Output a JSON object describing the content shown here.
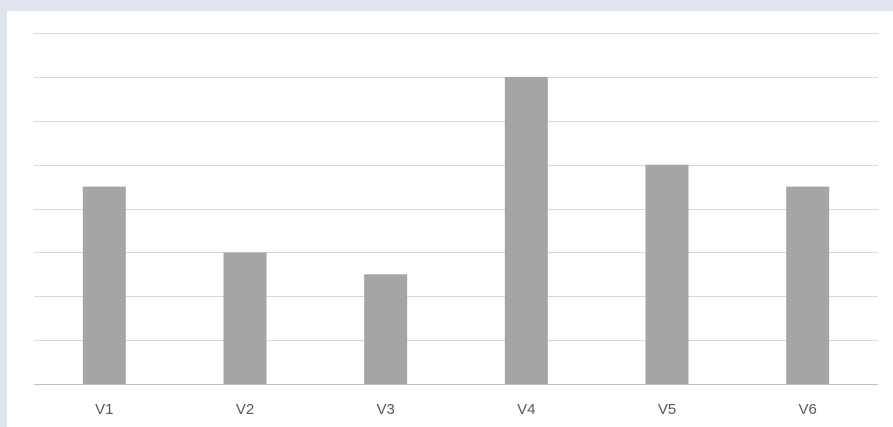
{
  "chart_data": {
    "type": "bar",
    "categories": [
      "V1",
      "V2",
      "V3",
      "V4",
      "V5",
      "V6"
    ],
    "values": [
      4.5,
      3,
      2.5,
      7,
      5,
      4.5
    ],
    "title": "",
    "xlabel": "",
    "ylabel": "",
    "ylim": [
      0,
      8
    ],
    "grid": true,
    "legend": "none",
    "bar_color": "#a5a5a5",
    "grid_color": "#d9d9d9",
    "axis_color": "#bfbfbf",
    "label_color": "#595959"
  }
}
